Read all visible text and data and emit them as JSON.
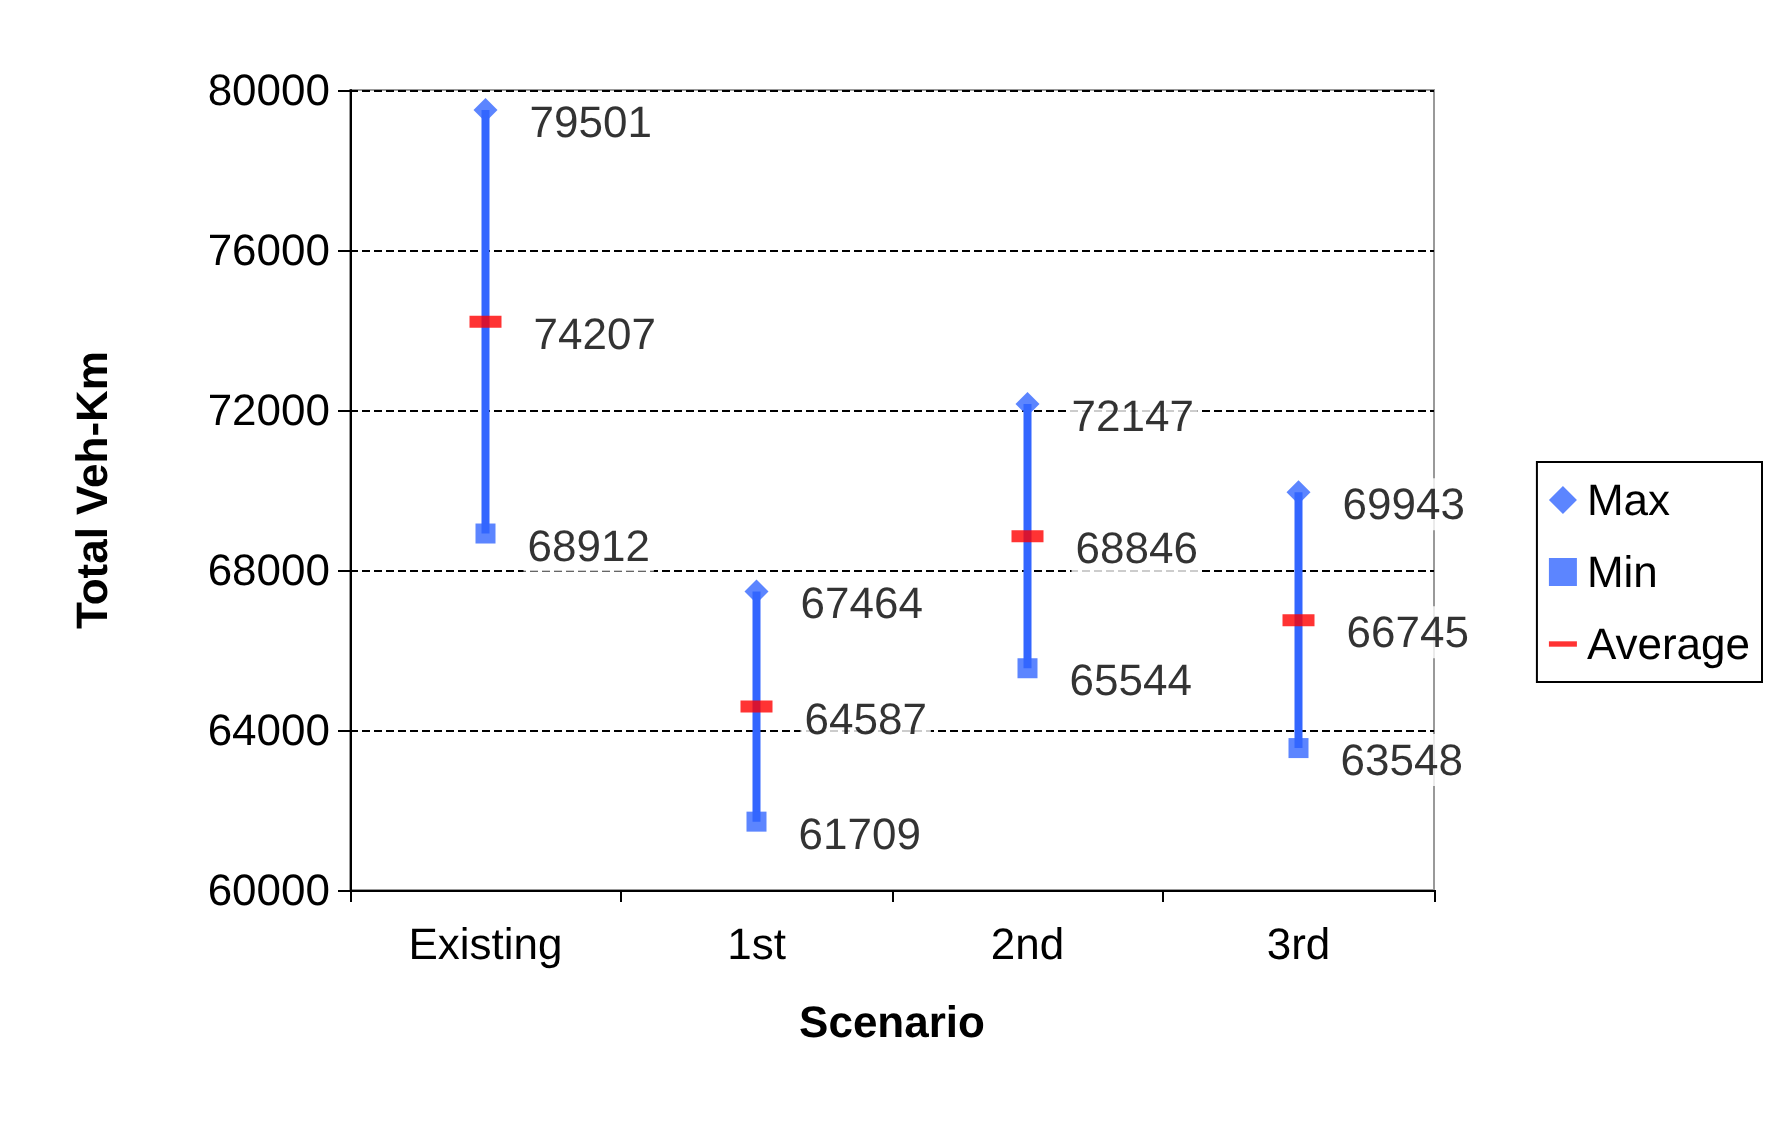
{
  "chart_data": {
    "type": "scatter",
    "xlabel": "Scenario",
    "ylabel": "Total Veh-Km",
    "categories": [
      "Existing",
      "1st",
      "2nd",
      "3rd"
    ],
    "series": [
      {
        "name": "Max",
        "color": "#3366ff",
        "marker": "diamond",
        "values": [
          79501,
          67464,
          72147,
          69943
        ]
      },
      {
        "name": "Min",
        "color": "#3366ff",
        "marker": "square",
        "values": [
          68912,
          61709,
          65544,
          63548
        ]
      },
      {
        "name": "Average",
        "color": "#ff0000",
        "values": [
          74207,
          64587,
          68846,
          66745
        ]
      }
    ],
    "ylim": [
      60000,
      80000
    ],
    "yticks": [
      60000,
      64000,
      68000,
      72000,
      76000,
      80000
    ],
    "grid": "y",
    "legend": "right",
    "data_labels": true
  }
}
